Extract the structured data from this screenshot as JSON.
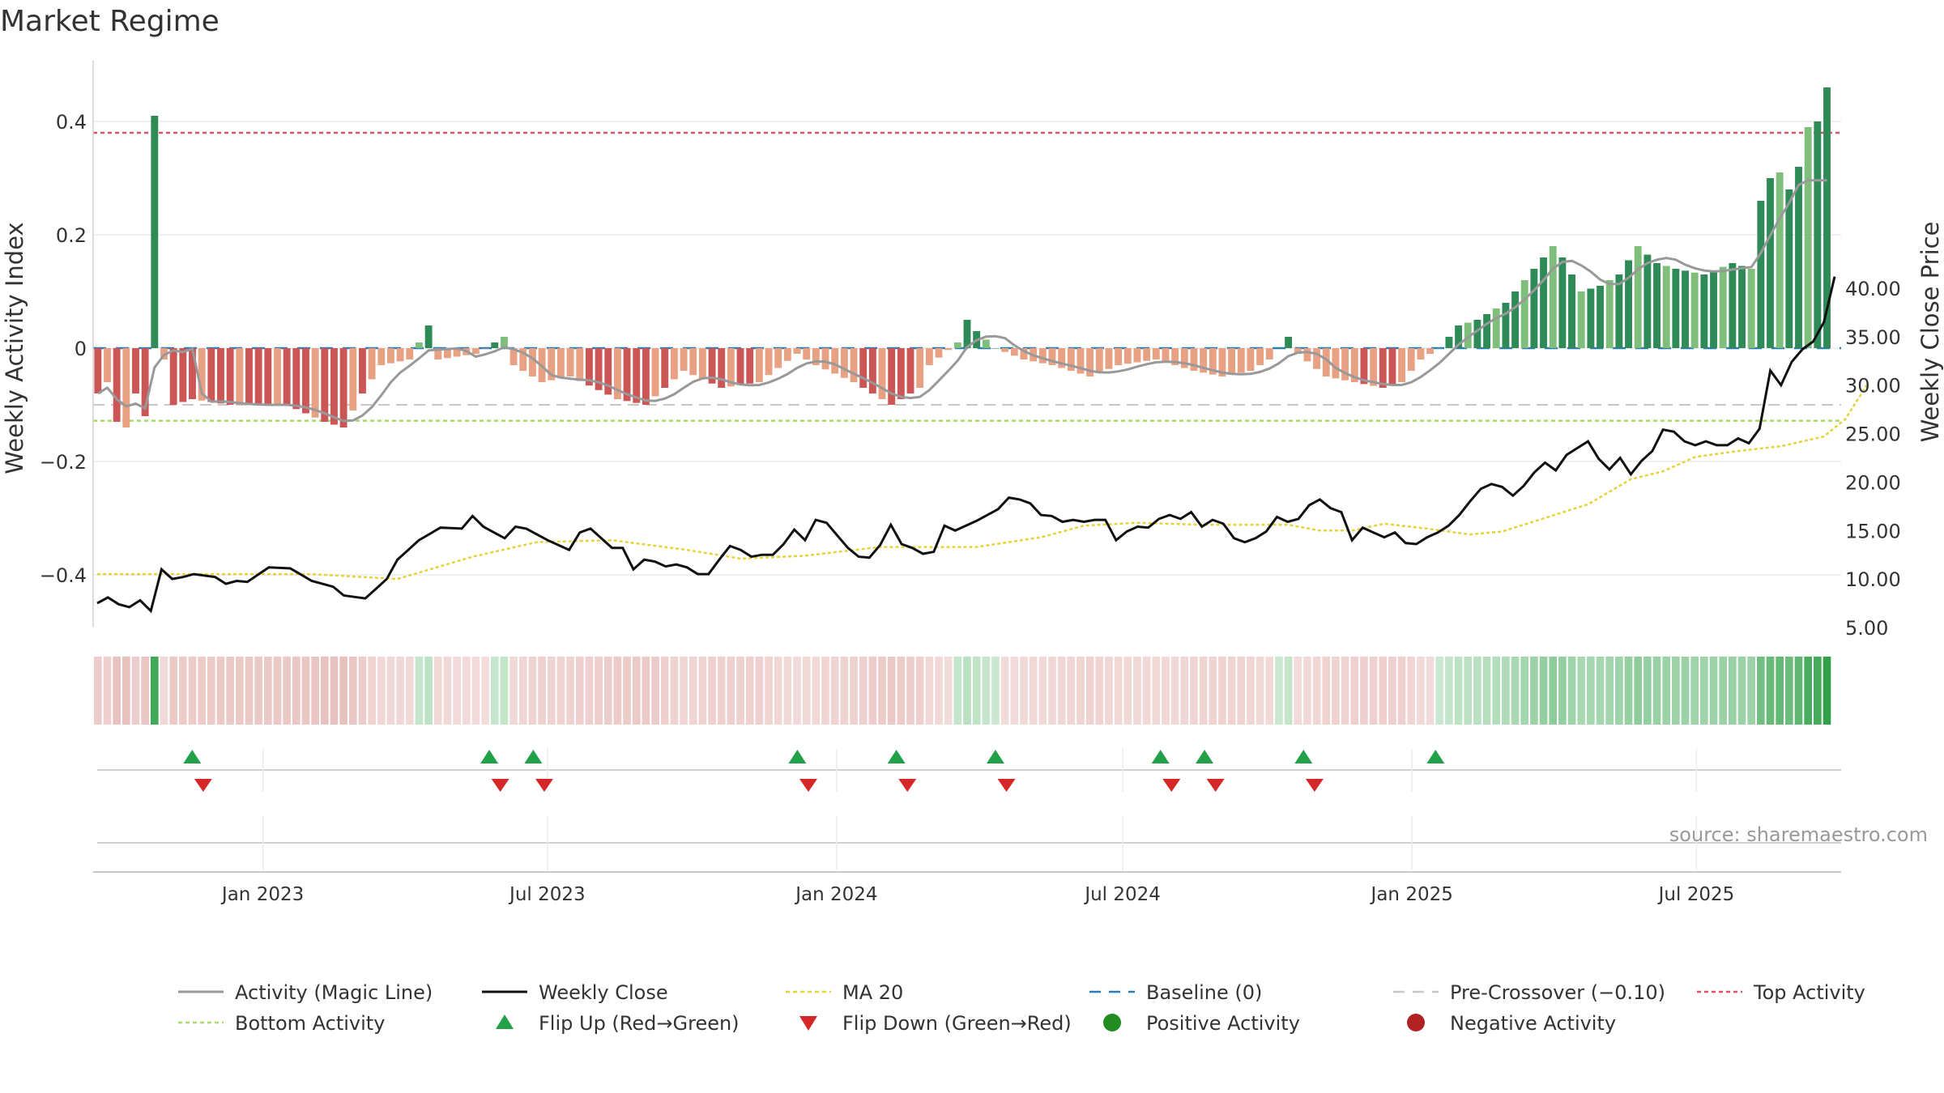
{
  "chart_data": {
    "title": "Market Regime",
    "type": "bar",
    "ylabel": "Weekly Activity Index",
    "y2label": "Weekly Close Price",
    "ylim": [
      -0.5,
      0.5
    ],
    "y2lim": [
      5,
      43
    ],
    "yticks": [
      0.4,
      0.2,
      0,
      -0.2,
      -0.4
    ],
    "yticklabels": [
      "0.4",
      "0.2",
      "0",
      "−0.2",
      "−0.4"
    ],
    "y2ticks": [
      40,
      35,
      30,
      25,
      20,
      15,
      10,
      5
    ],
    "y2ticklabels": [
      "40.00",
      "35.00",
      "30.00",
      "25.00",
      "20.00",
      "15.00",
      "10.00",
      "5.00"
    ],
    "x_start": "2022-09-15",
    "x_end": "2025-10-01",
    "xticks": [
      "2023-01-01",
      "2023-07-01",
      "2024-01-01",
      "2024-07-01",
      "2025-01-01",
      "2025-07-01"
    ],
    "xticklabels": [
      "Jan 2023",
      "Jul 2023",
      "Jan 2024",
      "Jul 2024",
      "Jan 2025",
      "Jul 2025"
    ],
    "source": "source: sharemaestro.com",
    "reference_lines": {
      "baseline": 0,
      "pre_crossover": -0.1,
      "top_activity": 0.38,
      "bottom_activity": -0.128
    },
    "activity_knots": [
      [
        0,
        -0.08
      ],
      [
        1,
        -0.06
      ],
      [
        2,
        -0.13
      ],
      [
        3,
        -0.14
      ],
      [
        4,
        -0.08
      ],
      [
        5,
        -0.12
      ],
      [
        6,
        0.41
      ],
      [
        7,
        -0.02
      ],
      [
        8,
        -0.1
      ],
      [
        10,
        -0.09
      ],
      [
        14,
        -0.1
      ],
      [
        20,
        -0.1
      ],
      [
        24,
        -0.13
      ],
      [
        26,
        -0.14
      ],
      [
        28,
        -0.08
      ],
      [
        30,
        -0.03
      ],
      [
        33,
        -0.02
      ],
      [
        35,
        0.04
      ],
      [
        36,
        -0.02
      ],
      [
        40,
        -0.01
      ],
      [
        43,
        0.02
      ],
      [
        44,
        -0.03
      ],
      [
        47,
        -0.06
      ],
      [
        50,
        -0.05
      ],
      [
        55,
        -0.09
      ],
      [
        58,
        -0.1
      ],
      [
        62,
        -0.04
      ],
      [
        66,
        -0.07
      ],
      [
        70,
        -0.06
      ],
      [
        74,
        -0.01
      ],
      [
        76,
        -0.03
      ],
      [
        80,
        -0.06
      ],
      [
        84,
        -0.1
      ],
      [
        87,
        -0.07
      ],
      [
        88,
        -0.03
      ],
      [
        91,
        0.01
      ],
      [
        92,
        0.05
      ],
      [
        93,
        0.03
      ],
      [
        95,
        0
      ],
      [
        98,
        -0.02
      ],
      [
        101,
        -0.03
      ],
      [
        103,
        -0.04
      ],
      [
        105,
        -0.05
      ],
      [
        108,
        -0.03
      ],
      [
        112,
        -0.02
      ],
      [
        116,
        -0.04
      ],
      [
        119,
        -0.05
      ],
      [
        122,
        -0.04
      ],
      [
        124,
        -0.02
      ],
      [
        126,
        0.02
      ],
      [
        127,
        -0.01
      ],
      [
        130,
        -0.05
      ],
      [
        133,
        -0.06
      ],
      [
        136,
        -0.07
      ],
      [
        138,
        -0.06
      ],
      [
        140,
        -0.02
      ],
      [
        142,
        0
      ],
      [
        144,
        0.04
      ],
      [
        146,
        0.05
      ],
      [
        149,
        0.08
      ],
      [
        151,
        0.12
      ],
      [
        153,
        0.16
      ],
      [
        154,
        0.18
      ],
      [
        155,
        0.16
      ],
      [
        157,
        0.1
      ],
      [
        159,
        0.11
      ],
      [
        161,
        0.13
      ],
      [
        163,
        0.18
      ],
      [
        165,
        0.15
      ],
      [
        167,
        0.14
      ],
      [
        170,
        0.13
      ],
      [
        173,
        0.15
      ],
      [
        175,
        0.14
      ],
      [
        176,
        0.26
      ],
      [
        177,
        0.3
      ],
      [
        178,
        0.31
      ],
      [
        179,
        0.28
      ],
      [
        180,
        0.32
      ],
      [
        181,
        0.39
      ],
      [
        182,
        0.4
      ],
      [
        183,
        0.46
      ]
    ],
    "close_knots": [
      [
        0,
        7.5
      ],
      [
        1,
        8.1
      ],
      [
        2,
        7.4
      ],
      [
        3,
        7.1
      ],
      [
        4,
        7.8
      ],
      [
        5,
        6.7
      ],
      [
        6,
        11.0
      ],
      [
        7,
        10.0
      ],
      [
        8,
        10.2
      ],
      [
        9,
        10.5
      ],
      [
        11,
        10.2
      ],
      [
        12,
        9.5
      ],
      [
        13,
        9.8
      ],
      [
        14,
        9.7
      ],
      [
        16,
        11.2
      ],
      [
        18,
        11.1
      ],
      [
        20,
        9.8
      ],
      [
        22,
        9.2
      ],
      [
        23,
        8.3
      ],
      [
        25,
        8.0
      ],
      [
        27,
        10.0
      ],
      [
        28,
        12.0
      ],
      [
        30,
        14.0
      ],
      [
        32,
        15.3
      ],
      [
        34,
        15.2
      ],
      [
        35,
        16.5
      ],
      [
        36,
        15.4
      ],
      [
        38,
        14.2
      ],
      [
        39,
        15.4
      ],
      [
        40,
        15.2
      ],
      [
        42,
        14.0
      ],
      [
        44,
        13.0
      ],
      [
        45,
        14.8
      ],
      [
        46,
        15.2
      ],
      [
        48,
        13.2
      ],
      [
        49,
        13.2
      ],
      [
        50,
        11.0
      ],
      [
        51,
        12.0
      ],
      [
        52,
        11.8
      ],
      [
        53,
        11.3
      ],
      [
        54,
        11.5
      ],
      [
        55,
        11.2
      ],
      [
        56,
        10.5
      ],
      [
        57,
        10.5
      ],
      [
        58,
        12.0
      ],
      [
        59,
        13.4
      ],
      [
        60,
        13.0
      ],
      [
        61,
        12.3
      ],
      [
        62,
        12.5
      ],
      [
        63,
        12.5
      ],
      [
        64,
        13.6
      ],
      [
        65,
        15.1
      ],
      [
        66,
        14.0
      ],
      [
        67,
        16.1
      ],
      [
        68,
        15.8
      ],
      [
        69,
        14.5
      ],
      [
        70,
        13.2
      ],
      [
        71,
        12.3
      ],
      [
        72,
        12.2
      ],
      [
        73,
        13.5
      ],
      [
        74,
        15.6
      ],
      [
        75,
        13.6
      ],
      [
        76,
        13.2
      ],
      [
        77,
        12.6
      ],
      [
        78,
        12.8
      ],
      [
        79,
        15.5
      ],
      [
        80,
        15.0
      ],
      [
        82,
        16.0
      ],
      [
        84,
        17.2
      ],
      [
        85,
        18.4
      ],
      [
        86,
        18.2
      ],
      [
        87,
        17.8
      ],
      [
        88,
        16.6
      ],
      [
        89,
        16.5
      ],
      [
        90,
        15.9
      ],
      [
        91,
        16.1
      ],
      [
        92,
        15.9
      ],
      [
        93,
        16.1
      ],
      [
        94,
        16.1
      ],
      [
        95,
        14.0
      ],
      [
        96,
        14.9
      ],
      [
        97,
        15.4
      ],
      [
        98,
        15.3
      ],
      [
        99,
        16.2
      ],
      [
        100,
        16.6
      ],
      [
        101,
        16.2
      ],
      [
        102,
        16.9
      ],
      [
        103,
        15.4
      ],
      [
        104,
        16.1
      ],
      [
        105,
        15.7
      ],
      [
        106,
        14.2
      ],
      [
        107,
        13.8
      ],
      [
        108,
        14.2
      ],
      [
        109,
        14.9
      ],
      [
        110,
        16.4
      ],
      [
        111,
        15.9
      ],
      [
        112,
        16.2
      ],
      [
        113,
        17.6
      ],
      [
        114,
        18.2
      ],
      [
        115,
        17.3
      ],
      [
        116,
        16.9
      ],
      [
        117,
        14.0
      ],
      [
        118,
        15.3
      ],
      [
        119,
        14.8
      ],
      [
        120,
        14.3
      ],
      [
        121,
        14.8
      ],
      [
        122,
        13.7
      ],
      [
        123,
        13.6
      ],
      [
        124,
        14.3
      ],
      [
        125,
        14.8
      ],
      [
        126,
        15.5
      ],
      [
        127,
        16.6
      ],
      [
        128,
        18.0
      ],
      [
        129,
        19.3
      ],
      [
        130,
        19.8
      ],
      [
        131,
        19.5
      ],
      [
        132,
        18.6
      ],
      [
        133,
        19.6
      ],
      [
        134,
        21.0
      ],
      [
        135,
        22.0
      ],
      [
        136,
        21.2
      ],
      [
        137,
        22.8
      ],
      [
        138,
        23.5
      ],
      [
        139,
        24.2
      ],
      [
        140,
        22.4
      ],
      [
        141,
        21.3
      ],
      [
        142,
        22.5
      ],
      [
        143,
        20.8
      ],
      [
        144,
        22.2
      ],
      [
        145,
        23.2
      ],
      [
        146,
        25.4
      ],
      [
        147,
        25.2
      ],
      [
        148,
        24.2
      ],
      [
        149,
        23.8
      ],
      [
        150,
        24.2
      ],
      [
        151,
        23.8
      ],
      [
        152,
        23.8
      ],
      [
        153,
        24.5
      ],
      [
        154,
        24.0
      ],
      [
        155,
        25.5
      ],
      [
        156,
        31.5
      ],
      [
        157,
        30.0
      ],
      [
        158,
        32.4
      ],
      [
        159,
        33.7
      ],
      [
        160,
        34.5
      ],
      [
        161,
        36.5
      ],
      [
        162,
        41.2
      ]
    ],
    "ma_knots": [
      [
        0,
        10.5
      ],
      [
        12,
        10.5
      ],
      [
        20,
        10.5
      ],
      [
        28,
        10.0
      ],
      [
        35,
        12.3
      ],
      [
        41,
        13.8
      ],
      [
        48,
        14.0
      ],
      [
        55,
        13.0
      ],
      [
        60,
        12.1
      ],
      [
        66,
        12.4
      ],
      [
        73,
        13.3
      ],
      [
        82,
        13.3
      ],
      [
        88,
        14.3
      ],
      [
        92,
        15.5
      ],
      [
        97,
        15.8
      ],
      [
        103,
        15.6
      ],
      [
        111,
        15.6
      ],
      [
        114,
        15.0
      ],
      [
        117,
        15.0
      ],
      [
        120,
        15.7
      ],
      [
        124,
        15.2
      ],
      [
        128,
        14.6
      ],
      [
        131,
        14.9
      ],
      [
        135,
        16.3
      ],
      [
        139,
        17.7
      ],
      [
        143,
        20.3
      ],
      [
        146,
        21.1
      ],
      [
        149,
        22.6
      ],
      [
        153,
        23.2
      ],
      [
        157,
        23.7
      ],
      [
        161,
        24.7
      ],
      [
        163,
        26.5
      ],
      [
        165,
        30.0
      ]
    ],
    "flip_up": [
      "2022-11-17",
      "2023-05-25",
      "2023-06-22",
      "2023-12-07",
      "2024-02-08",
      "2024-04-11",
      "2024-07-25",
      "2024-08-22",
      "2024-10-24",
      "2025-01-16"
    ],
    "flip_down": [
      "2022-11-24",
      "2023-06-01",
      "2023-06-29",
      "2023-12-14",
      "2024-02-15",
      "2024-04-18",
      "2024-08-01",
      "2024-08-29",
      "2024-10-31"
    ]
  },
  "legend": [
    {
      "key": "magic",
      "label": "Activity (Magic Line)",
      "color": "#999999"
    },
    {
      "key": "close",
      "label": "Weekly Close",
      "color": "#111111"
    },
    {
      "key": "ma",
      "label": "MA 20",
      "color": "#e6d33a"
    },
    {
      "key": "baseline",
      "label": "Baseline (0)",
      "color": "#2a7ab8"
    },
    {
      "key": "precross",
      "label": "Pre-Crossover (−0.10)",
      "color": "#c8c8c8"
    },
    {
      "key": "top",
      "label": "Top Activity",
      "color": "#d9546a"
    },
    {
      "key": "bottom",
      "label": "Bottom Activity",
      "color": "#a8d86e"
    },
    {
      "key": "flipup",
      "label": "Flip Up (Red→Green)",
      "color": "#22a04a"
    },
    {
      "key": "flipdown",
      "label": "Flip Down (Green→Red)",
      "color": "#d62728"
    },
    {
      "key": "pos",
      "label": "Positive Activity",
      "color": "#228b22"
    },
    {
      "key": "neg",
      "label": "Negative Activity",
      "color": "#b22222"
    }
  ]
}
